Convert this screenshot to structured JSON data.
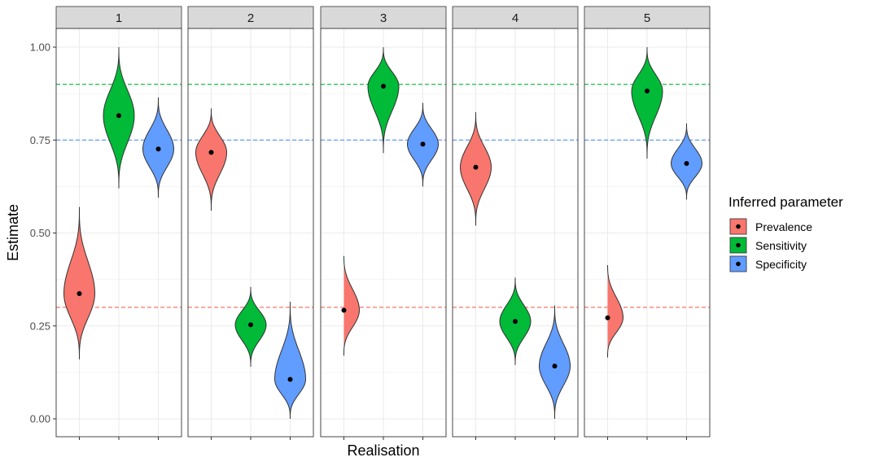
{
  "chart_data": {
    "type": "violin",
    "facets": [
      "1",
      "2",
      "3",
      "4",
      "5"
    ],
    "xlabel": "Realisation",
    "ylabel": "Estimate",
    "ylim": [
      -0.03,
      1.1
    ],
    "yticks": [
      0.0,
      0.25,
      0.5,
      0.75,
      1.0
    ],
    "ytick_labels": [
      "0.00",
      "0.25",
      "0.50",
      "0.75",
      "1.00"
    ],
    "grid": true,
    "legend": {
      "title": "Inferred parameter",
      "position": "right",
      "entries": [
        "Prevalence",
        "Sensitivity",
        "Specificity"
      ]
    },
    "colors": {
      "Prevalence": "#F8766D",
      "Sensitivity": "#00BA38",
      "Specificity": "#619CFF"
    },
    "reference_lines": [
      {
        "parameter": "Prevalence",
        "value": 0.3
      },
      {
        "parameter": "Sensitivity",
        "value": 0.9
      },
      {
        "parameter": "Specificity",
        "value": 0.75
      }
    ],
    "series": [
      {
        "name": "Prevalence",
        "medians": [
          0.337,
          0.717,
          0.292,
          0.677,
          0.272
        ],
        "min": [
          0.16,
          0.56,
          0.17,
          0.52,
          0.165
        ],
        "max": [
          0.57,
          0.835,
          0.445,
          0.825,
          0.42
        ]
      },
      {
        "name": "Sensitivity",
        "medians": [
          0.816,
          0.253,
          0.895,
          0.262,
          0.882
        ],
        "min": [
          0.62,
          0.14,
          0.715,
          0.145,
          0.7
        ],
        "max": [
          1.0,
          0.355,
          1.0,
          0.38,
          1.0
        ]
      },
      {
        "name": "Specificity",
        "medians": [
          0.726,
          0.106,
          0.739,
          0.142,
          0.687
        ],
        "min": [
          0.595,
          0.0,
          0.625,
          0.0,
          0.59
        ],
        "max": [
          0.865,
          0.315,
          0.85,
          0.305,
          0.795
        ]
      }
    ]
  }
}
